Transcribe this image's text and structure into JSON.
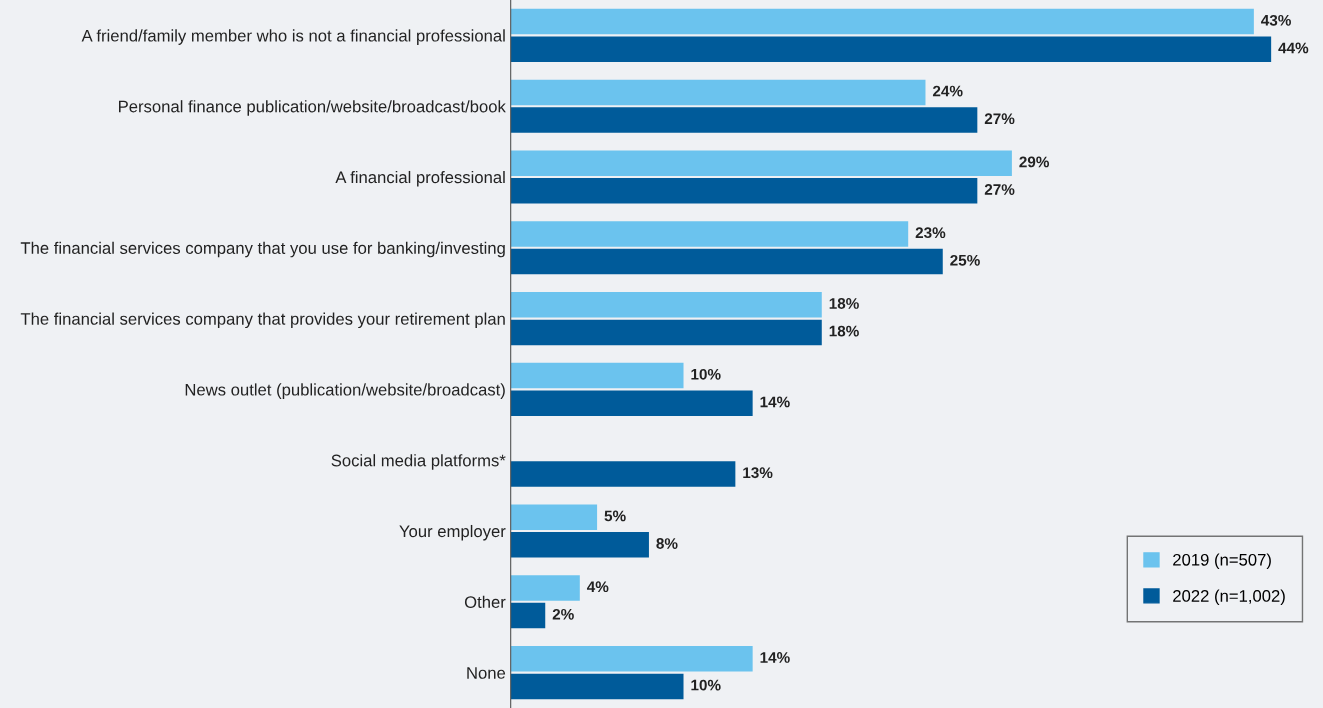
{
  "chart_data": {
    "type": "bar",
    "orientation": "horizontal",
    "categories": [
      "A friend/family member who is not a financial professional",
      "Personal finance publication/website/broadcast/book",
      "A financial professional",
      "The financial services company that you use for banking/investing",
      "The financial services company that provides your retirement plan",
      "News outlet (publication/website/broadcast)",
      "Social media platforms*",
      "Your employer",
      "Other",
      "None"
    ],
    "series": [
      {
        "name": "2019 (n=507)",
        "color": "#6bc3ee",
        "values": [
          43,
          24,
          29,
          23,
          18,
          10,
          null,
          5,
          4,
          14
        ],
        "value_labels": [
          "43%",
          "24%",
          "29%",
          "23%",
          "18%",
          "10%",
          null,
          "5%",
          "4%",
          "14%"
        ]
      },
      {
        "name": "2022 (n=1,002)",
        "color": "#005b9a",
        "values": [
          44,
          27,
          27,
          25,
          18,
          14,
          13,
          8,
          2,
          10
        ],
        "value_labels": [
          "44%",
          "27%",
          "27%",
          "25%",
          "18%",
          "14%",
          "13%",
          "8%",
          "2%",
          "10%"
        ]
      }
    ],
    "xlim": [
      0,
      47
    ],
    "tick_labels": "y",
    "grid": false,
    "legend": "bottom right"
  }
}
